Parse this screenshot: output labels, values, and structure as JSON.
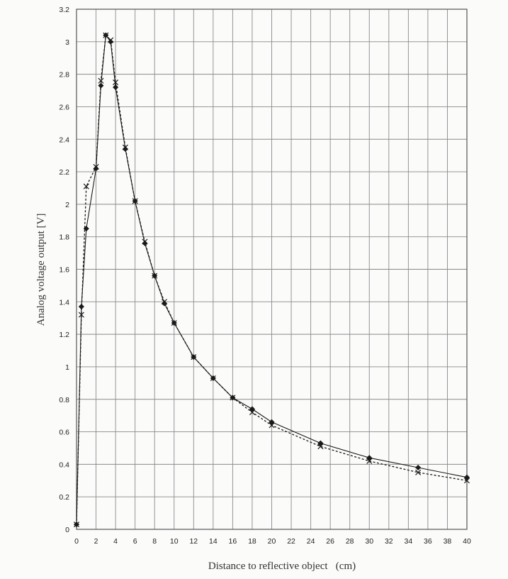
{
  "chart_data": {
    "type": "line",
    "title": "",
    "xlabel": "Distance to reflective object   (cm)",
    "ylabel": "Analog voltage output [V]",
    "xlim": [
      0,
      40
    ],
    "ylim": [
      0,
      3.2
    ],
    "x_ticks": [
      "0",
      "2",
      "4",
      "6",
      "8",
      "10",
      "12",
      "14",
      "16",
      "18",
      "20",
      "22",
      "24",
      "26",
      "28",
      "30",
      "32",
      "34",
      "36",
      "38",
      "40"
    ],
    "y_ticks": [
      "0",
      "0.2",
      "0.4",
      "0.6",
      "0.8",
      "1",
      "1.2",
      "1.4",
      "1.6",
      "1.8",
      "2",
      "2.2",
      "2.4",
      "2.6",
      "2.8",
      "3",
      "3.2"
    ],
    "grid": true,
    "legend": "none",
    "series": [
      {
        "marker": "diamond",
        "line_style": "solid",
        "color": "#1a1a1a",
        "x": [
          0,
          0.5,
          1,
          2,
          2.5,
          3,
          3.5,
          4,
          5,
          6,
          7,
          8,
          9,
          10,
          12,
          14,
          16,
          18,
          20,
          25,
          30,
          35,
          40
        ],
        "y": [
          0.03,
          1.37,
          1.85,
          2.22,
          2.73,
          3.04,
          3.0,
          2.72,
          2.34,
          2.02,
          1.76,
          1.56,
          1.39,
          1.27,
          1.06,
          0.93,
          0.81,
          0.74,
          0.66,
          0.53,
          0.44,
          0.38,
          0.32
        ]
      },
      {
        "marker": "x",
        "line_style": "dotted",
        "color": "#1a1a1a",
        "x": [
          0,
          0.5,
          1,
          2,
          2.5,
          3,
          3.5,
          4,
          5,
          6,
          7,
          8,
          9,
          10,
          12,
          14,
          16,
          18,
          20,
          25,
          30,
          35,
          40
        ],
        "y": [
          0.03,
          1.32,
          2.11,
          2.23,
          2.76,
          3.04,
          3.01,
          2.75,
          2.35,
          2.02,
          1.77,
          1.56,
          1.4,
          1.27,
          1.06,
          0.93,
          0.81,
          0.72,
          0.64,
          0.51,
          0.42,
          0.35,
          0.3
        ]
      }
    ]
  }
}
